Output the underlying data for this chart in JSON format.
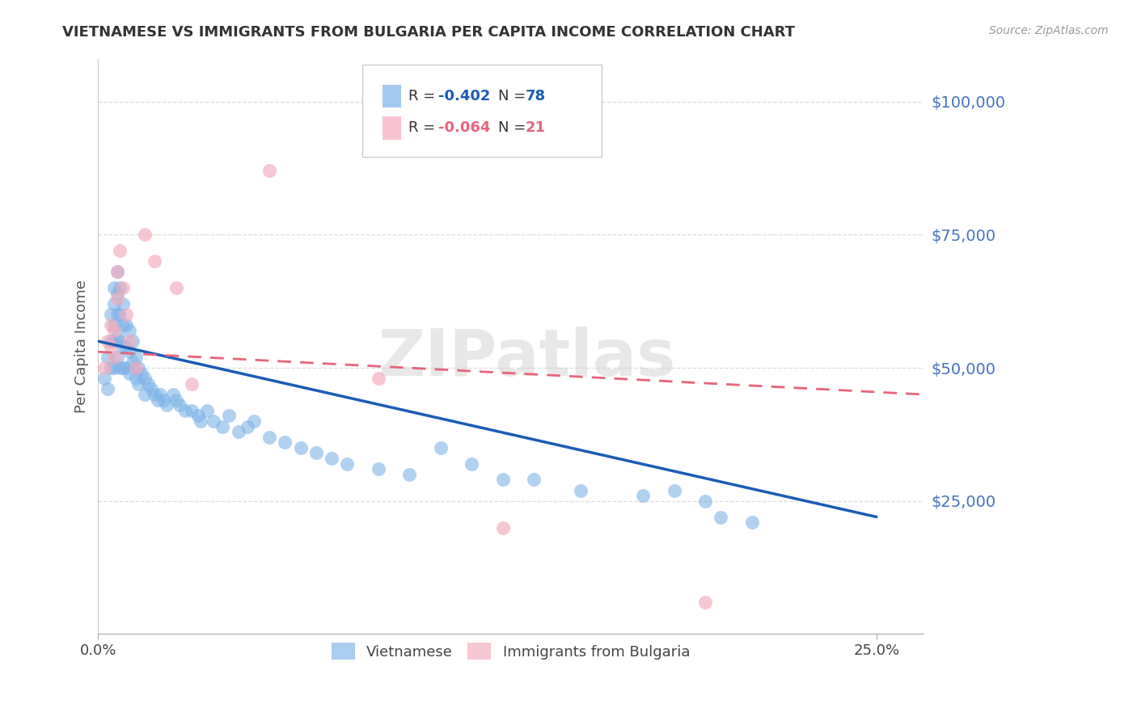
{
  "title": "VIETNAMESE VS IMMIGRANTS FROM BULGARIA PER CAPITA INCOME CORRELATION CHART",
  "source": "Source: ZipAtlas.com",
  "ylabel": "Per Capita Income",
  "y_ticks": [
    0,
    25000,
    50000,
    75000,
    100000
  ],
  "y_tick_labels": [
    "",
    "$25,000",
    "$50,000",
    "$75,000",
    "$100,000"
  ],
  "x_ticks": [
    0.0,
    0.25
  ],
  "x_tick_labels": [
    "0.0%",
    "25.0%"
  ],
  "x_range": [
    0.0,
    0.265
  ],
  "y_range": [
    0,
    108000
  ],
  "watermark": "ZIPatlas",
  "legend_blue_r": "R = -0.402",
  "legend_blue_n": "N = 78",
  "legend_pink_r": "R = -0.064",
  "legend_pink_n": "N = 21",
  "blue_color": "#7EB3E8",
  "pink_color": "#F4AABC",
  "line_blue": "#1A5CB5",
  "line_pink": "#E8637A",
  "tick_color": "#4472C4",
  "blue_scatter_x": [
    0.002,
    0.003,
    0.003,
    0.004,
    0.004,
    0.004,
    0.005,
    0.005,
    0.005,
    0.005,
    0.005,
    0.006,
    0.006,
    0.006,
    0.006,
    0.006,
    0.007,
    0.007,
    0.007,
    0.007,
    0.008,
    0.008,
    0.008,
    0.008,
    0.009,
    0.009,
    0.009,
    0.01,
    0.01,
    0.01,
    0.011,
    0.011,
    0.012,
    0.012,
    0.013,
    0.013,
    0.014,
    0.015,
    0.015,
    0.016,
    0.017,
    0.018,
    0.019,
    0.02,
    0.021,
    0.022,
    0.024,
    0.025,
    0.026,
    0.028,
    0.03,
    0.032,
    0.033,
    0.035,
    0.037,
    0.04,
    0.042,
    0.045,
    0.048,
    0.05,
    0.055,
    0.06,
    0.065,
    0.07,
    0.075,
    0.08,
    0.09,
    0.1,
    0.11,
    0.12,
    0.13,
    0.14,
    0.155,
    0.175,
    0.185,
    0.195,
    0.2,
    0.21
  ],
  "blue_scatter_y": [
    48000,
    52000,
    46000,
    55000,
    60000,
    50000,
    65000,
    62000,
    58000,
    55000,
    50000,
    68000,
    64000,
    60000,
    56000,
    52000,
    65000,
    60000,
    55000,
    50000,
    62000,
    58000,
    54000,
    50000,
    58000,
    54000,
    50000,
    57000,
    53000,
    49000,
    55000,
    51000,
    52000,
    48000,
    50000,
    47000,
    49000,
    48000,
    45000,
    47000,
    46000,
    45000,
    44000,
    45000,
    44000,
    43000,
    45000,
    44000,
    43000,
    42000,
    42000,
    41000,
    40000,
    42000,
    40000,
    39000,
    41000,
    38000,
    39000,
    40000,
    37000,
    36000,
    35000,
    34000,
    33000,
    32000,
    31000,
    30000,
    35000,
    32000,
    29000,
    29000,
    27000,
    26000,
    27000,
    25000,
    22000,
    21000
  ],
  "pink_scatter_x": [
    0.002,
    0.003,
    0.004,
    0.004,
    0.005,
    0.005,
    0.006,
    0.006,
    0.007,
    0.008,
    0.009,
    0.01,
    0.012,
    0.015,
    0.018,
    0.025,
    0.03,
    0.055,
    0.09,
    0.13,
    0.195
  ],
  "pink_scatter_y": [
    50000,
    55000,
    58000,
    54000,
    57000,
    52000,
    63000,
    68000,
    72000,
    65000,
    60000,
    55000,
    50000,
    75000,
    70000,
    65000,
    47000,
    87000,
    48000,
    20000,
    6000
  ],
  "blue_trend_x": [
    0.0,
    0.25
  ],
  "blue_trend_y": [
    55000,
    22000
  ],
  "pink_trend_x": [
    0.0,
    0.265
  ],
  "pink_trend_y": [
    53000,
    45000
  ],
  "background_color": "#FFFFFF",
  "grid_color": "#DDDDDD",
  "legend_blue_label": "Vietnamese",
  "legend_pink_label": "Immigrants from Bulgaria"
}
